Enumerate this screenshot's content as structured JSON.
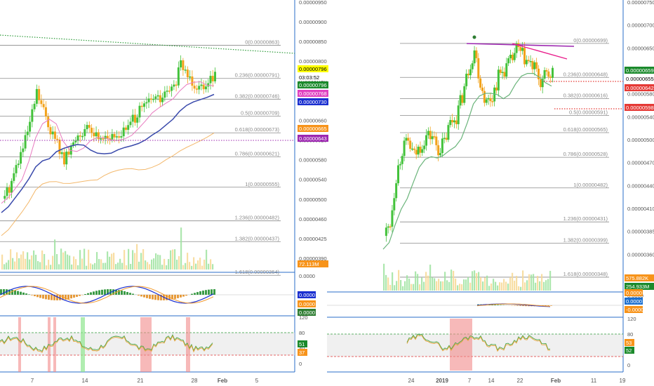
{
  "colors": {
    "up": "#43c23b",
    "down": "#f2a21a",
    "pink_line": "#e87cc0",
    "blue_line": "#3949ab",
    "orange_line": "#f3b86c",
    "green_ma": "#6ab47a",
    "axis": "#2a6cc8",
    "level_line": "#8a8a8a",
    "level_text": "#8a8a8a",
    "vol_up": "#9fe3a0",
    "vol_down": "#f7d894",
    "rsi_band": "#e6e6e6",
    "rsi_shade": "#f28b8b",
    "rsi_green": "#8ee68e",
    "magenta": "#9c27b0",
    "pink_trend": "#e91e8c",
    "red_dot": "#e53935",
    "green_dot": "#2e7d32"
  },
  "chart_data": [
    {
      "id": "left",
      "type": "line",
      "title": "",
      "x_ticks": [
        "7",
        "14",
        "21",
        "28",
        "Feb",
        "5"
      ],
      "y_ticks": [
        "0.00000950",
        "0.00000900",
        "0.00000850",
        "0.00000800",
        "0.00000750",
        "0.00000700",
        "0.00000660",
        "0.00000620",
        "0.00000580",
        "0.00000540",
        "0.00000500",
        "0.00000460",
        "0.00000425",
        "0.00000390"
      ],
      "fib_levels": [
        {
          "label": "0(0.00000863)",
          "value": 8.63e-06
        },
        {
          "label": "0.236(0.00000791)",
          "value": 7.91e-06
        },
        {
          "label": "0.382(0.00000746)",
          "value": 7.46e-06
        },
        {
          "label": "0.5(0.00000709)",
          "value": 7.09e-06
        },
        {
          "label": "0.618(0.00000673)",
          "value": 6.73e-06
        },
        {
          "label": "0.786(0.00000621)",
          "value": 6.21e-06
        },
        {
          "label": "1(0.00000555)",
          "value": 5.55e-06
        },
        {
          "label": "1.236(0.00000482)",
          "value": 4.82e-06
        },
        {
          "label": "1.382(0.00000437)",
          "value": 4.37e-06
        },
        {
          "label": "1.618(0.00000364)",
          "value": 3.64e-06
        }
      ],
      "price_tags": [
        {
          "text": "0.00000796",
          "bg": "#ffff00",
          "fg": "#000000"
        },
        {
          "text": "03:03:52",
          "bg": "#ffffff",
          "fg": "#000000"
        },
        {
          "text": "0.00000796",
          "bg": "#1b8a2c",
          "fg": "#ffffff"
        },
        {
          "text": "0.00000768",
          "bg": "#e040c0",
          "fg": "#ffffff"
        },
        {
          "text": "0.00000730",
          "bg": "#1a2fd0",
          "fg": "#ffffff"
        },
        {
          "text": "0.00000665",
          "bg": "#f7931a",
          "fg": "#ffffff"
        },
        {
          "text": "0.00000643",
          "bg": "#9c27b0",
          "fg": "#ffffff"
        },
        {
          "text": "72.113M",
          "bg": "#f7931a",
          "fg": "#ffffff"
        }
      ],
      "macd_ticks": [
        "0.0000"
      ],
      "macd_tags": [
        {
          "text": "0.0000",
          "bg": "#1a2fd0",
          "fg": "#ffffff"
        },
        {
          "text": "0.0000",
          "bg": "#f7931a",
          "fg": "#ffffff"
        },
        {
          "text": "0.0000",
          "bg": "#2e7d32",
          "fg": "#ffffff"
        }
      ],
      "rsi_ticks": [
        "120",
        "80",
        "40",
        "0"
      ],
      "rsi_tags": [
        {
          "text": "51",
          "bg": "#1b8a2c",
          "fg": "#ffffff"
        },
        {
          "text": "37",
          "bg": "#f7931a",
          "fg": "#ffffff"
        }
      ],
      "series": [
        {
          "name": "",
          "x": [
            0,
            1,
            2,
            3,
            4,
            5,
            6,
            7,
            8,
            9,
            10,
            11,
            12,
            13,
            14,
            15,
            16,
            17,
            18,
            19,
            20,
            21,
            22,
            23,
            24,
            25,
            26,
            27,
            28,
            29,
            30,
            31
          ],
          "close": [
            5.3e-06,
            5.55e-06,
            6e-06,
            6.4e-06,
            6.9e-06,
            7.6e-06,
            7.2e-06,
            6.8e-06,
            6.5e-06,
            6.1e-06,
            6.4e-06,
            6.7e-06,
            6.8e-06,
            6.75e-06,
            6.65e-06,
            6.7e-06,
            6.6e-06,
            6.7e-06,
            6.8e-06,
            7e-06,
            7.2e-06,
            7.35e-06,
            7.5e-06,
            7.45e-06,
            7.6e-06,
            7.7e-06,
            8.2e-06,
            8e-06,
            7.8e-06,
            7.75e-06,
            7.9e-06,
            7.96e-06
          ]
        }
      ]
    },
    {
      "id": "right",
      "type": "line",
      "title": "",
      "x_ticks": [
        "24",
        "2019",
        "7",
        "14",
        "22",
        "Feb",
        "11",
        "19"
      ],
      "y_ticks": [
        "0.00000750",
        "0.00000700",
        "0.00000650",
        "0.00000620",
        "0.00000580",
        "0.00000540",
        "0.00000500",
        "0.00000470",
        "0.00000440",
        "0.00000410",
        "0.00000385",
        "0.00000360",
        "0.00000335"
      ],
      "fib_levels": [
        {
          "label": "0(0.00000699)",
          "value": 6.99e-06
        },
        {
          "label": "0.236(0.00000648)",
          "value": 6.48e-06
        },
        {
          "label": "0.382(0.00000616)",
          "value": 6.16e-06
        },
        {
          "label": "0.5(0.00000591)",
          "value": 5.91e-06
        },
        {
          "label": "0.618(0.00000565)",
          "value": 5.65e-06
        },
        {
          "label": "0.786(0.00000528)",
          "value": 5.28e-06
        },
        {
          "label": "1(0.00000482)",
          "value": 4.82e-06
        },
        {
          "label": "1.236(0.00000431)",
          "value": 4.31e-06
        },
        {
          "label": "1.382(0.00000399)",
          "value": 3.99e-06
        },
        {
          "label": "1.618(0.00000348)",
          "value": 3.48e-06
        }
      ],
      "price_tags": [
        {
          "text": "0.00000659",
          "bg": "#1b8a2c",
          "fg": "#ffffff"
        },
        {
          "text": "0.00000655",
          "bg": "#ffffff",
          "fg": "#000000"
        },
        {
          "text": "0.00000642",
          "bg": "#e53935",
          "fg": "#ffffff"
        },
        {
          "text": "0.00000598",
          "bg": "#e53935",
          "fg": "#ffffff"
        },
        {
          "text": "575.882K",
          "bg": "#f7931a",
          "fg": "#ffffff"
        },
        {
          "text": "254.933M",
          "bg": "#1b8a2c",
          "fg": "#ffffff"
        }
      ],
      "macd_ticks": [
        "0.0000"
      ],
      "macd_tags": [
        {
          "text": "0.0000",
          "bg": "#f7931a",
          "fg": "#ffffff"
        },
        {
          "text": "0.0000",
          "bg": "#1a6fd0",
          "fg": "#ffffff"
        },
        {
          "text": "-0.0000",
          "bg": "#f7931a",
          "fg": "#ffffff"
        }
      ],
      "rsi_ticks": [
        "120",
        "80",
        "40",
        "0"
      ],
      "rsi_tags": [
        {
          "text": "53",
          "bg": "#f7931a",
          "fg": "#ffffff"
        },
        {
          "text": "52",
          "bg": "#1b8a2c",
          "fg": "#ffffff"
        }
      ],
      "series": [
        {
          "name": "",
          "x": [
            0,
            1,
            2,
            3,
            4,
            5,
            6,
            7,
            8,
            9,
            10,
            11,
            12,
            13,
            14,
            15,
            16,
            17,
            18,
            19,
            20,
            21,
            22,
            23,
            24,
            25,
            26,
            27,
            28
          ],
          "close": [
            4.1e-06,
            4.3e-06,
            5e-06,
            5.4e-06,
            5.5e-06,
            5.3e-06,
            5.45e-06,
            5.6e-06,
            5.6e-06,
            5.4e-06,
            5.5e-06,
            5.8e-06,
            5.9e-06,
            6.2e-06,
            6.6e-06,
            6.9e-06,
            6.4e-06,
            6.1e-06,
            6.2e-06,
            6.5e-06,
            6.6e-06,
            6.7e-06,
            6.9e-06,
            6.8e-06,
            6.7e-06,
            6.6e-06,
            6.4e-06,
            6.5e-06,
            6.55e-06
          ]
        }
      ]
    }
  ]
}
